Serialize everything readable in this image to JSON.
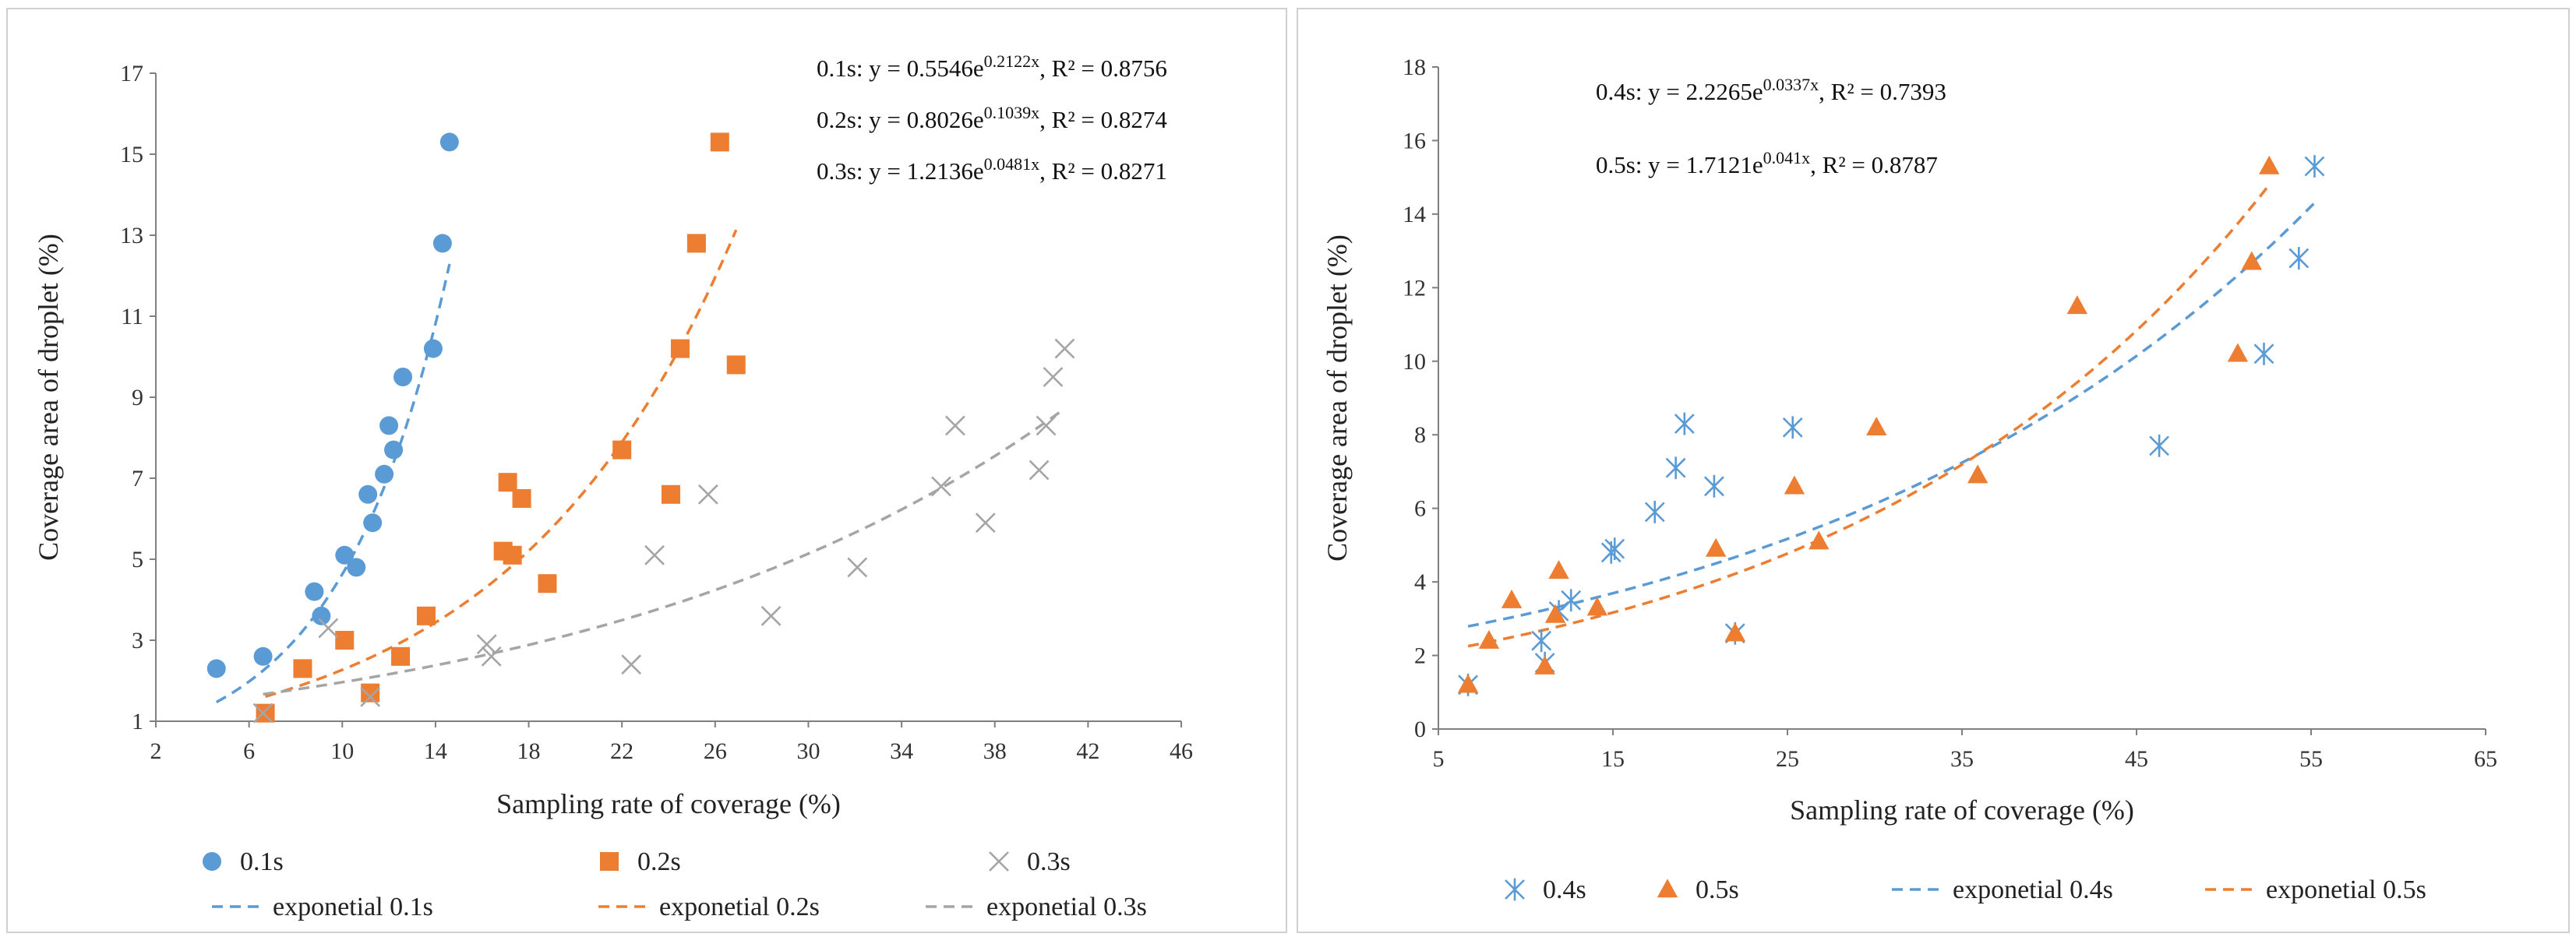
{
  "chart_data": [
    {
      "type": "scatter",
      "title": "",
      "xlabel": "Sampling rate of coverage (%)",
      "ylabel": "Coverage area of droplet (%)",
      "xlim": [
        2,
        46
      ],
      "ylim": [
        1,
        17
      ],
      "xticks": [
        2,
        6,
        10,
        14,
        18,
        22,
        26,
        30,
        34,
        38,
        42,
        46
      ],
      "yticks": [
        1,
        3,
        5,
        7,
        9,
        11,
        13,
        15,
        17
      ],
      "grid": false,
      "legend": "bottom",
      "annotations": [
        {
          "series": "0.1s",
          "label": "0.1s: y = 0.5546e",
          "exp": "0.2122x",
          "r2": ", R² = 0.8756"
        },
        {
          "series": "0.2s",
          "label": "0.2s: y = 0.8026e",
          "exp": "0.1039x",
          "r2": ", R² = 0.8274"
        },
        {
          "series": "0.3s",
          "label": "0.3s: y = 1.2136e",
          "exp": "0.0481x",
          "r2": ", R² = 0.8271"
        }
      ],
      "series": [
        {
          "name": "0.1s",
          "marker": "circle",
          "color": "#5b9bd5",
          "points": [
            [
              4.6,
              2.3
            ],
            [
              6.6,
              2.6
            ],
            [
              8.8,
              4.2
            ],
            [
              9.1,
              3.6
            ],
            [
              10.1,
              5.1
            ],
            [
              10.6,
              4.8
            ],
            [
              11.1,
              6.6
            ],
            [
              11.3,
              5.9
            ],
            [
              11.8,
              7.1
            ],
            [
              12.0,
              8.3
            ],
            [
              12.2,
              7.7
            ],
            [
              12.6,
              9.5
            ],
            [
              13.9,
              10.2
            ],
            [
              14.3,
              12.8
            ],
            [
              14.6,
              15.3
            ]
          ]
        },
        {
          "name": "0.2s",
          "marker": "square",
          "color": "#ed7d31",
          "points": [
            [
              6.7,
              1.2
            ],
            [
              8.3,
              2.3
            ],
            [
              10.1,
              3.0
            ],
            [
              11.2,
              1.7
            ],
            [
              12.5,
              2.6
            ],
            [
              13.6,
              3.6
            ],
            [
              16.9,
              5.2
            ],
            [
              17.1,
              6.9
            ],
            [
              17.3,
              5.1
            ],
            [
              17.7,
              6.5
            ],
            [
              18.8,
              4.4
            ],
            [
              22.0,
              7.7
            ],
            [
              24.1,
              6.6
            ],
            [
              24.5,
              10.2
            ],
            [
              25.2,
              12.8
            ],
            [
              26.2,
              15.3
            ],
            [
              26.9,
              9.8
            ]
          ]
        },
        {
          "name": "0.3s",
          "marker": "x",
          "color": "#a5a5a5",
          "points": [
            [
              6.6,
              1.2
            ],
            [
              9.4,
              3.3
            ],
            [
              11.2,
              1.6
            ],
            [
              16.2,
              2.9
            ],
            [
              16.4,
              2.6
            ],
            [
              22.4,
              2.4
            ],
            [
              23.4,
              5.1
            ],
            [
              25.7,
              6.6
            ],
            [
              28.4,
              3.6
            ],
            [
              32.1,
              4.8
            ],
            [
              35.7,
              6.8
            ],
            [
              36.3,
              8.3
            ],
            [
              37.6,
              5.9
            ],
            [
              39.9,
              7.2
            ],
            [
              40.2,
              8.3
            ],
            [
              40.5,
              9.5
            ],
            [
              41.0,
              10.2
            ]
          ]
        },
        {
          "name": "exponetial 0.1s",
          "type": "trendline",
          "color": "#5b9bd5",
          "a": 0.5546,
          "b": 0.2122,
          "x_range": [
            4.6,
            14.6
          ]
        },
        {
          "name": "exponetial 0.2s",
          "type": "trendline",
          "color": "#ed7d31",
          "a": 0.8026,
          "b": 0.1039,
          "x_range": [
            6.7,
            26.9
          ]
        },
        {
          "name": "exponetial 0.3s",
          "type": "trendline",
          "color": "#a5a5a5",
          "a": 1.2136,
          "b": 0.0481,
          "x_range": [
            6.6,
            41.0
          ]
        }
      ]
    },
    {
      "type": "scatter",
      "title": "",
      "xlabel": "Sampling rate of coverage (%)",
      "ylabel": "Coverage area of droplet (%)",
      "xlim": [
        5,
        65
      ],
      "ylim": [
        0,
        18
      ],
      "xticks": [
        5,
        15,
        25,
        35,
        45,
        55,
        65
      ],
      "yticks": [
        0,
        2,
        4,
        6,
        8,
        10,
        12,
        14,
        16,
        18
      ],
      "grid": false,
      "legend": "bottom",
      "annotations": [
        {
          "series": "0.4s",
          "label": "0.4s: y = 2.2265e",
          "exp": "0.0337x",
          "r2": ", R² = 0.7393"
        },
        {
          "series": "0.5s",
          "label": "0.5s: y = 1.7121e",
          "exp": "0.041x",
          "r2": ", R² = 0.8787"
        }
      ],
      "series": [
        {
          "name": "0.4s",
          "marker": "asterisk",
          "color": "#5b9bd5",
          "points": [
            [
              6.7,
              1.2
            ],
            [
              10.9,
              2.4
            ],
            [
              11.1,
              1.8
            ],
            [
              11.9,
              3.2
            ],
            [
              12.6,
              3.5
            ],
            [
              14.9,
              4.8
            ],
            [
              15.1,
              4.9
            ],
            [
              17.4,
              5.9
            ],
            [
              18.6,
              7.1
            ],
            [
              19.1,
              8.3
            ],
            [
              20.8,
              6.6
            ],
            [
              22.0,
              2.6
            ],
            [
              25.3,
              8.2
            ],
            [
              46.3,
              7.7
            ],
            [
              52.3,
              10.2
            ],
            [
              54.3,
              12.8
            ],
            [
              55.2,
              15.3
            ]
          ]
        },
        {
          "name": "0.5s",
          "marker": "triangle",
          "color": "#ed7d31",
          "points": [
            [
              6.7,
              1.2
            ],
            [
              7.9,
              2.4
            ],
            [
              9.2,
              3.5
            ],
            [
              11.1,
              1.7
            ],
            [
              11.7,
              3.1
            ],
            [
              11.9,
              4.3
            ],
            [
              14.1,
              3.3
            ],
            [
              20.9,
              4.9
            ],
            [
              22.0,
              2.6
            ],
            [
              25.4,
              6.6
            ],
            [
              26.8,
              5.1
            ],
            [
              30.1,
              8.2
            ],
            [
              35.9,
              6.9
            ],
            [
              41.6,
              11.5
            ],
            [
              50.8,
              10.2
            ],
            [
              51.6,
              12.7
            ],
            [
              52.6,
              15.3
            ]
          ]
        },
        {
          "name": "exponetial 0.4s",
          "type": "trendline",
          "color": "#5b9bd5",
          "a": 2.2265,
          "b": 0.0337,
          "x_range": [
            6.7,
            55.2
          ]
        },
        {
          "name": "exponetial 0.5s",
          "type": "trendline",
          "color": "#ed7d31",
          "a": 1.7121,
          "b": 0.041,
          "x_range": [
            6.7,
            52.6
          ]
        }
      ]
    }
  ]
}
